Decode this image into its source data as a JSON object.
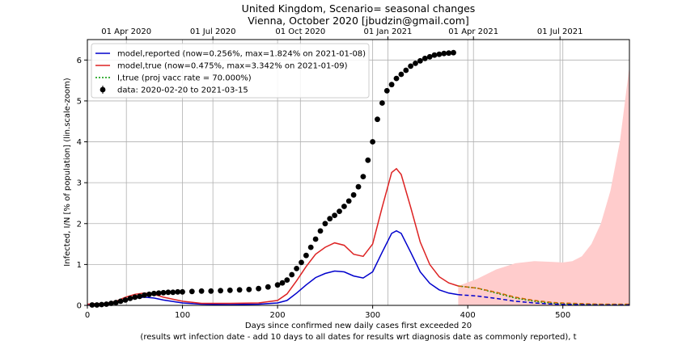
{
  "chart_data": {
    "type": "line",
    "title": "United Kingdom, Scenario= seasonal changes",
    "subtitle": "Vienna, October 2020 [jbudzin@gmail.com]",
    "xlabel": "Days since confirmed new daily cases first exceeded 20",
    "xlabel2": "(results wrt infection date - add 10 days to all dates for results wrt diagnosis date as commonly reported), t",
    "ylabel": "Infected, I/N [% of population] (lin.scale-zoom)",
    "xlim": [
      0,
      570
    ],
    "ylim": [
      0,
      6.5
    ],
    "x_ticks": [
      0,
      100,
      200,
      300,
      400,
      500
    ],
    "y_ticks": [
      0,
      1,
      2,
      3,
      4,
      5,
      6
    ],
    "top_axis_ticks": [
      {
        "x": 41,
        "label": "01 Apr 2020"
      },
      {
        "x": 132,
        "label": "01 Jul 2020"
      },
      {
        "x": 224,
        "label": "01 Oct 2020"
      },
      {
        "x": 316,
        "label": "01 Jan 2021"
      },
      {
        "x": 406,
        "label": "01 Apr 2021"
      },
      {
        "x": 497,
        "label": "01 Jul 2021"
      }
    ],
    "grid": true,
    "legend_position": "top-left",
    "series": [
      {
        "name": "model,reported (now=0.256%, max=1.824% on 2021-01-08)",
        "color": "#0000cc",
        "style": "solid",
        "points": [
          [
            0,
            0.02
          ],
          [
            20,
            0.03
          ],
          [
            30,
            0.06
          ],
          [
            40,
            0.12
          ],
          [
            50,
            0.18
          ],
          [
            60,
            0.2
          ],
          [
            70,
            0.18
          ],
          [
            80,
            0.13
          ],
          [
            100,
            0.06
          ],
          [
            120,
            0.03
          ],
          [
            150,
            0.02
          ],
          [
            180,
            0.03
          ],
          [
            200,
            0.06
          ],
          [
            210,
            0.12
          ],
          [
            220,
            0.3
          ],
          [
            230,
            0.5
          ],
          [
            240,
            0.68
          ],
          [
            250,
            0.78
          ],
          [
            260,
            0.84
          ],
          [
            270,
            0.82
          ],
          [
            280,
            0.72
          ],
          [
            290,
            0.67
          ],
          [
            300,
            0.82
          ],
          [
            310,
            1.3
          ],
          [
            320,
            1.76
          ],
          [
            325,
            1.824
          ],
          [
            330,
            1.76
          ],
          [
            340,
            1.3
          ],
          [
            350,
            0.82
          ],
          [
            360,
            0.54
          ],
          [
            370,
            0.38
          ],
          [
            380,
            0.3
          ],
          [
            390,
            0.26
          ]
        ]
      },
      {
        "name": "model,true (now=0.475%, max=3.342% on 2021-01-09)",
        "color": "#dd2222",
        "style": "solid",
        "points": [
          [
            0,
            0.03
          ],
          [
            20,
            0.05
          ],
          [
            30,
            0.1
          ],
          [
            40,
            0.2
          ],
          [
            50,
            0.27
          ],
          [
            60,
            0.3
          ],
          [
            70,
            0.27
          ],
          [
            80,
            0.2
          ],
          [
            100,
            0.1
          ],
          [
            120,
            0.05
          ],
          [
            150,
            0.05
          ],
          [
            180,
            0.06
          ],
          [
            200,
            0.12
          ],
          [
            210,
            0.28
          ],
          [
            220,
            0.6
          ],
          [
            230,
            0.95
          ],
          [
            240,
            1.25
          ],
          [
            250,
            1.42
          ],
          [
            260,
            1.53
          ],
          [
            270,
            1.47
          ],
          [
            280,
            1.25
          ],
          [
            290,
            1.2
          ],
          [
            300,
            1.5
          ],
          [
            310,
            2.4
          ],
          [
            320,
            3.25
          ],
          [
            325,
            3.342
          ],
          [
            330,
            3.2
          ],
          [
            340,
            2.4
          ],
          [
            350,
            1.55
          ],
          [
            360,
            1.0
          ],
          [
            370,
            0.7
          ],
          [
            380,
            0.55
          ],
          [
            390,
            0.475
          ]
        ]
      },
      {
        "name": "I,true (proj vacc rate = 70.000%)",
        "color": "#009900",
        "style": "dotted",
        "points": [
          [
            390,
            0.475
          ],
          [
            410,
            0.42
          ],
          [
            430,
            0.3
          ],
          [
            450,
            0.18
          ],
          [
            470,
            0.1
          ],
          [
            490,
            0.05
          ],
          [
            510,
            0.03
          ],
          [
            540,
            0.02
          ],
          [
            570,
            0.02
          ]
        ]
      },
      {
        "name": "",
        "color": "#cc6600",
        "style": "dashed",
        "points": [
          [
            390,
            0.475
          ],
          [
            410,
            0.42
          ],
          [
            430,
            0.32
          ],
          [
            450,
            0.2
          ],
          [
            470,
            0.12
          ],
          [
            490,
            0.07
          ],
          [
            510,
            0.05
          ],
          [
            540,
            0.03
          ],
          [
            570,
            0.03
          ]
        ]
      },
      {
        "name": "",
        "color": "#0000cc",
        "style": "dashed",
        "points": [
          [
            390,
            0.26
          ],
          [
            410,
            0.23
          ],
          [
            430,
            0.17
          ],
          [
            450,
            0.1
          ],
          [
            470,
            0.06
          ],
          [
            490,
            0.03
          ],
          [
            510,
            0.02
          ],
          [
            540,
            0.01
          ],
          [
            570,
            0.01
          ]
        ]
      }
    ],
    "uncertainty_band": {
      "color": "#ffcccc",
      "upper": [
        [
          390,
          0.475
        ],
        [
          410,
          0.65
        ],
        [
          430,
          0.88
        ],
        [
          450,
          1.03
        ],
        [
          470,
          1.08
        ],
        [
          490,
          1.06
        ],
        [
          500,
          1.05
        ],
        [
          510,
          1.08
        ],
        [
          520,
          1.2
        ],
        [
          530,
          1.5
        ],
        [
          540,
          2.0
        ],
        [
          550,
          2.8
        ],
        [
          560,
          4.0
        ],
        [
          570,
          5.85
        ]
      ],
      "lower": [
        [
          570,
          0.0
        ],
        [
          390,
          0.0
        ]
      ]
    },
    "data_series": {
      "name": "data: 2020-02-20 to 2021-03-15",
      "color": "#000000",
      "points": [
        [
          5,
          0.01
        ],
        [
          10,
          0.01
        ],
        [
          15,
          0.02
        ],
        [
          20,
          0.03
        ],
        [
          25,
          0.05
        ],
        [
          30,
          0.07
        ],
        [
          35,
          0.1
        ],
        [
          40,
          0.13
        ],
        [
          45,
          0.17
        ],
        [
          50,
          0.2
        ],
        [
          55,
          0.22
        ],
        [
          60,
          0.25
        ],
        [
          65,
          0.27
        ],
        [
          70,
          0.29
        ],
        [
          75,
          0.3
        ],
        [
          80,
          0.31
        ],
        [
          85,
          0.32
        ],
        [
          90,
          0.32
        ],
        [
          95,
          0.33
        ],
        [
          100,
          0.33
        ],
        [
          110,
          0.34
        ],
        [
          120,
          0.35
        ],
        [
          130,
          0.35
        ],
        [
          140,
          0.36
        ],
        [
          150,
          0.37
        ],
        [
          160,
          0.38
        ],
        [
          170,
          0.39
        ],
        [
          180,
          0.41
        ],
        [
          190,
          0.45
        ],
        [
          200,
          0.5
        ],
        [
          205,
          0.55
        ],
        [
          210,
          0.62
        ],
        [
          215,
          0.75
        ],
        [
          220,
          0.9
        ],
        [
          225,
          1.05
        ],
        [
          230,
          1.22
        ],
        [
          235,
          1.42
        ],
        [
          240,
          1.62
        ],
        [
          245,
          1.82
        ],
        [
          250,
          2.0
        ],
        [
          255,
          2.12
        ],
        [
          260,
          2.2
        ],
        [
          265,
          2.3
        ],
        [
          270,
          2.42
        ],
        [
          275,
          2.55
        ],
        [
          280,
          2.7
        ],
        [
          285,
          2.9
        ],
        [
          290,
          3.15
        ],
        [
          295,
          3.55
        ],
        [
          300,
          4.0
        ],
        [
          305,
          4.55
        ],
        [
          310,
          4.95
        ],
        [
          315,
          5.25
        ],
        [
          320,
          5.4
        ],
        [
          325,
          5.55
        ],
        [
          330,
          5.65
        ],
        [
          335,
          5.75
        ],
        [
          340,
          5.85
        ],
        [
          345,
          5.92
        ],
        [
          350,
          5.98
        ],
        [
          355,
          6.04
        ],
        [
          360,
          6.08
        ],
        [
          365,
          6.12
        ],
        [
          370,
          6.14
        ],
        [
          375,
          6.16
        ],
        [
          380,
          6.17
        ],
        [
          385,
          6.18
        ]
      ]
    }
  }
}
